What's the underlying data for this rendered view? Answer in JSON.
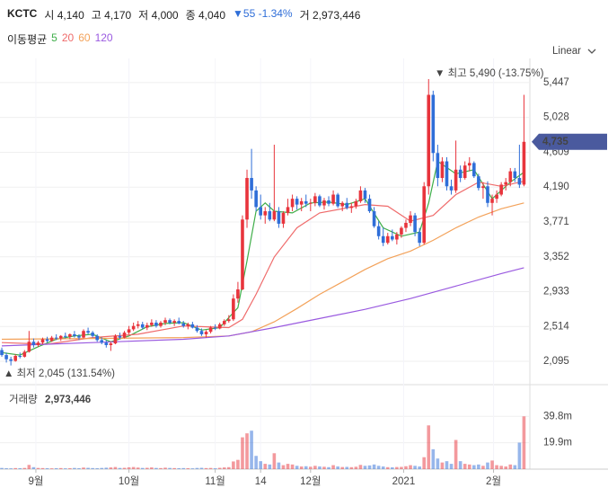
{
  "header": {
    "symbol": "KCTC",
    "quotes": [
      {
        "label": "시",
        "value": "4,140"
      },
      {
        "label": "고",
        "value": "4,170"
      },
      {
        "label": "저",
        "value": "4,000"
      },
      {
        "label": "종",
        "value": "4,040"
      }
    ],
    "change": "▼55 -1.34%",
    "volume_label": "거",
    "volume": "2,973,446"
  },
  "chart_data": {
    "type": "candlestick",
    "ma_label": "이동평균",
    "scale_label": "Linear",
    "up_color": "#e8343c",
    "down_color": "#2f6ed8",
    "candles": {
      "open": [
        2230,
        2170,
        2120,
        2100,
        2160,
        2150,
        2210,
        2330,
        2290,
        2320,
        2360,
        2340,
        2380,
        2370,
        2400,
        2390,
        2420,
        2400,
        2380,
        2460,
        2440,
        2400,
        2350,
        2320,
        2290,
        2310,
        2400,
        2380,
        2440,
        2480,
        2520,
        2540,
        2500,
        2530,
        2560,
        2520,
        2560,
        2590,
        2560,
        2580,
        2550,
        2520,
        2540,
        2500,
        2460,
        2420,
        2450,
        2500,
        2490,
        2540,
        2580,
        2600,
        2850,
        2960,
        3800,
        4300,
        4150,
        3950,
        3850,
        3900,
        3800,
        3900,
        3750,
        3880,
        3950,
        4050,
        3980,
        4020,
        3990,
        4000,
        4080,
        3970,
        4030,
        3990,
        4100,
        3960,
        4000,
        3940,
        3960,
        4020,
        4150,
        4050,
        3900,
        3720,
        3600,
        3520,
        3600,
        3560,
        3620,
        3700,
        3760,
        3850,
        3650,
        3520,
        4200,
        5300,
        4600,
        4300,
        4500,
        4200,
        4150,
        4400,
        4300,
        4450,
        4480,
        4320,
        4180,
        4200,
        4000,
        4050,
        4100,
        4220,
        4250,
        4380,
        4300,
        4220
      ],
      "high": [
        2260,
        2200,
        2150,
        2180,
        2200,
        2230,
        2460,
        2370,
        2340,
        2380,
        2390,
        2400,
        2420,
        2410,
        2440,
        2430,
        2460,
        2420,
        2480,
        2500,
        2460,
        2420,
        2380,
        2350,
        2330,
        2420,
        2440,
        2460,
        2520,
        2560,
        2580,
        2570,
        2560,
        2600,
        2590,
        2580,
        2620,
        2610,
        2600,
        2620,
        2580,
        2560,
        2570,
        2530,
        2490,
        2470,
        2520,
        2540,
        2560,
        2600,
        2650,
        2900,
        3050,
        3850,
        4400,
        4650,
        4200,
        4100,
        3950,
        4000,
        4700,
        3950,
        3900,
        4050,
        4100,
        4080,
        4060,
        4100,
        4050,
        4120,
        4100,
        4060,
        4080,
        4150,
        4120,
        4020,
        4060,
        4000,
        4050,
        4200,
        4180,
        4100,
        3950,
        3780,
        3700,
        3640,
        3680,
        3650,
        3720,
        3800,
        3900,
        3880,
        3700,
        4250,
        5490,
        5350,
        4700,
        4550,
        4550,
        4280,
        4750,
        4450,
        4500,
        4550,
        4500,
        4350,
        4250,
        4260,
        4100,
        4150,
        4250,
        4300,
        4420,
        4420,
        4700,
        5300
      ],
      "low": [
        2150,
        2080,
        2045,
        2090,
        2130,
        2140,
        2200,
        2260,
        2270,
        2300,
        2320,
        2330,
        2350,
        2340,
        2370,
        2360,
        2380,
        2350,
        2370,
        2420,
        2380,
        2330,
        2300,
        2260,
        2220,
        2300,
        2360,
        2370,
        2420,
        2460,
        2490,
        2480,
        2470,
        2510,
        2500,
        2500,
        2530,
        2540,
        2520,
        2540,
        2500,
        2480,
        2490,
        2440,
        2400,
        2380,
        2430,
        2470,
        2480,
        2520,
        2560,
        2580,
        2800,
        2950,
        3700,
        4050,
        3900,
        3800,
        3750,
        3780,
        3780,
        3700,
        3700,
        3850,
        3900,
        3920,
        3900,
        3950,
        3900,
        3960,
        3950,
        3920,
        3960,
        3970,
        3940,
        3900,
        3920,
        3880,
        3930,
        4000,
        4000,
        3880,
        3700,
        3560,
        3480,
        3500,
        3540,
        3500,
        3580,
        3650,
        3720,
        3600,
        3480,
        3500,
        4100,
        4500,
        4200,
        4250,
        4150,
        4100,
        4120,
        4250,
        4280,
        4380,
        4300,
        4150,
        4050,
        3950,
        3850,
        4000,
        4080,
        4150,
        4200,
        4250,
        4180,
        4200
      ],
      "close": [
        2170,
        2120,
        2100,
        2160,
        2150,
        2210,
        2330,
        2290,
        2320,
        2360,
        2340,
        2380,
        2370,
        2400,
        2390,
        2420,
        2400,
        2380,
        2460,
        2440,
        2400,
        2350,
        2320,
        2290,
        2310,
        2400,
        2380,
        2440,
        2480,
        2520,
        2540,
        2500,
        2530,
        2560,
        2520,
        2560,
        2590,
        2560,
        2580,
        2550,
        2520,
        2540,
        2500,
        2460,
        2420,
        2450,
        2500,
        2490,
        2540,
        2580,
        2600,
        2850,
        2960,
        3800,
        4300,
        4150,
        3950,
        3850,
        3900,
        3800,
        3900,
        3750,
        3880,
        3950,
        4050,
        3980,
        4020,
        3990,
        4000,
        4080,
        3970,
        4030,
        3990,
        4100,
        3960,
        4000,
        3940,
        3960,
        4020,
        4150,
        4050,
        3900,
        3720,
        3600,
        3520,
        3600,
        3560,
        3620,
        3700,
        3760,
        3850,
        3650,
        3520,
        4200,
        5300,
        4600,
        4300,
        4500,
        4200,
        4150,
        4400,
        4300,
        4450,
        4480,
        4320,
        4180,
        4200,
        4000,
        4050,
        4100,
        4220,
        4250,
        4380,
        4300,
        4220,
        4735
      ]
    },
    "volume": [
      900000,
      700000,
      600000,
      800000,
      700000,
      900000,
      3200000,
      1500000,
      900000,
      800000,
      700000,
      600000,
      700000,
      800000,
      600000,
      700000,
      900000,
      700000,
      1200000,
      1000000,
      800000,
      700000,
      900000,
      1100000,
      1300000,
      1600000,
      900000,
      1000000,
      1400000,
      1600000,
      1200000,
      900000,
      1000000,
      1300000,
      900000,
      800000,
      1100000,
      900000,
      800000,
      700000,
      800000,
      700000,
      600000,
      900000,
      1000000,
      800000,
      900000,
      700000,
      1000000,
      1300000,
      1500000,
      5800000,
      7000000,
      24000000,
      27000000,
      29000000,
      10000000,
      6000000,
      4000000,
      3500000,
      12000000,
      5000000,
      3000000,
      4000000,
      3500000,
      2500000,
      2000000,
      2200000,
      1800000,
      2500000,
      2000000,
      1800000,
      1500000,
      3000000,
      2000000,
      1600000,
      1700000,
      1500000,
      1800000,
      3200000,
      2500000,
      2800000,
      3500000,
      2500000,
      2000000,
      1500000,
      1400000,
      1600000,
      1700000,
      2200000,
      3000000,
      2500000,
      2000000,
      9000000,
      33000000,
      15000000,
      8000000,
      5000000,
      6000000,
      4000000,
      22000000,
      6000000,
      4000000,
      3500000,
      3000000,
      3500000,
      2500000,
      5000000,
      6500000,
      3000000,
      2500000,
      2000000,
      3500000,
      3000000,
      20000000,
      39800000
    ],
    "series": [
      {
        "name": "5",
        "color": "#3fae49",
        "x": [
          0,
          4,
          8,
          12,
          16,
          20,
          24,
          28,
          32,
          36,
          40,
          44,
          48,
          52,
          54,
          56,
          58,
          60,
          64,
          68,
          72,
          76,
          80,
          84,
          88,
          92,
          94,
          96,
          100,
          104,
          108,
          112,
          115
        ],
        "values": [
          2200,
          2170,
          2270,
          2360,
          2400,
          2420,
          2330,
          2400,
          2510,
          2550,
          2560,
          2470,
          2500,
          2740,
          3300,
          3900,
          4000,
          3900,
          3880,
          4000,
          4010,
          3980,
          4050,
          3700,
          3600,
          3650,
          4000,
          4500,
          4350,
          4400,
          4050,
          4250,
          4370
        ]
      },
      {
        "name": "20",
        "color": "#ef6b6b",
        "x": [
          0,
          10,
          20,
          30,
          40,
          45,
          50,
          53,
          56,
          60,
          65,
          70,
          80,
          85,
          90,
          95,
          100,
          105,
          110,
          115
        ],
        "values": [
          2320,
          2300,
          2380,
          2420,
          2520,
          2510,
          2500,
          2600,
          2900,
          3350,
          3700,
          3880,
          3980,
          3960,
          3780,
          3850,
          4100,
          4250,
          4200,
          4260
        ]
      },
      {
        "name": "60",
        "color": "#f3a25a",
        "x": [
          0,
          20,
          40,
          50,
          55,
          60,
          65,
          70,
          75,
          80,
          85,
          90,
          95,
          100,
          105,
          110,
          115
        ],
        "values": [
          2360,
          2370,
          2380,
          2400,
          2450,
          2570,
          2730,
          2900,
          3050,
          3200,
          3330,
          3420,
          3550,
          3700,
          3830,
          3930,
          4000
        ]
      },
      {
        "name": "120",
        "color": "#9a5ae0",
        "x": [
          0,
          20,
          40,
          50,
          60,
          70,
          80,
          90,
          100,
          110,
          115
        ],
        "values": [
          2280,
          2320,
          2360,
          2400,
          2500,
          2610,
          2720,
          2850,
          3000,
          3150,
          3220
        ]
      }
    ],
    "xlim": [
      -0.4,
      116.3
    ],
    "xticks": [
      {
        "value": 7.5,
        "label": "9월"
      },
      {
        "value": 28,
        "label": "10월"
      },
      {
        "value": 47,
        "label": "11월"
      },
      {
        "value": 57,
        "label": "14"
      },
      {
        "value": 68,
        "label": "12월"
      },
      {
        "value": 88.5,
        "label": "2021"
      },
      {
        "value": 108.3,
        "label": "2월"
      }
    ],
    "ylim": [
      1814,
      5738
    ],
    "yticks": [
      {
        "value": 2095,
        "label": "2,095"
      },
      {
        "value": 2514,
        "label": "2,514"
      },
      {
        "value": 2933,
        "label": "2,933"
      },
      {
        "value": 3352,
        "label": "3,352"
      },
      {
        "value": 3771,
        "label": "3,771"
      },
      {
        "value": 4190,
        "label": "4,190"
      },
      {
        "value": 4609,
        "label": "4,609"
      },
      {
        "value": 5028,
        "label": "5,028"
      },
      {
        "value": 5447,
        "label": "5,447"
      }
    ],
    "vlim": [
      0,
      61000000
    ],
    "vticks": [
      {
        "value": 19900000,
        "label": "19.9m"
      },
      {
        "value": 39800000,
        "label": "39.8m"
      }
    ],
    "high_note": "▼ 최고 5,490 (-13.75%)",
    "low_note": "▲ 최저 2,045 (131.54%)",
    "current": {
      "value": 4735,
      "label": "4,735"
    },
    "volume_title": "거래량",
    "volume_value": "2,973,446"
  }
}
